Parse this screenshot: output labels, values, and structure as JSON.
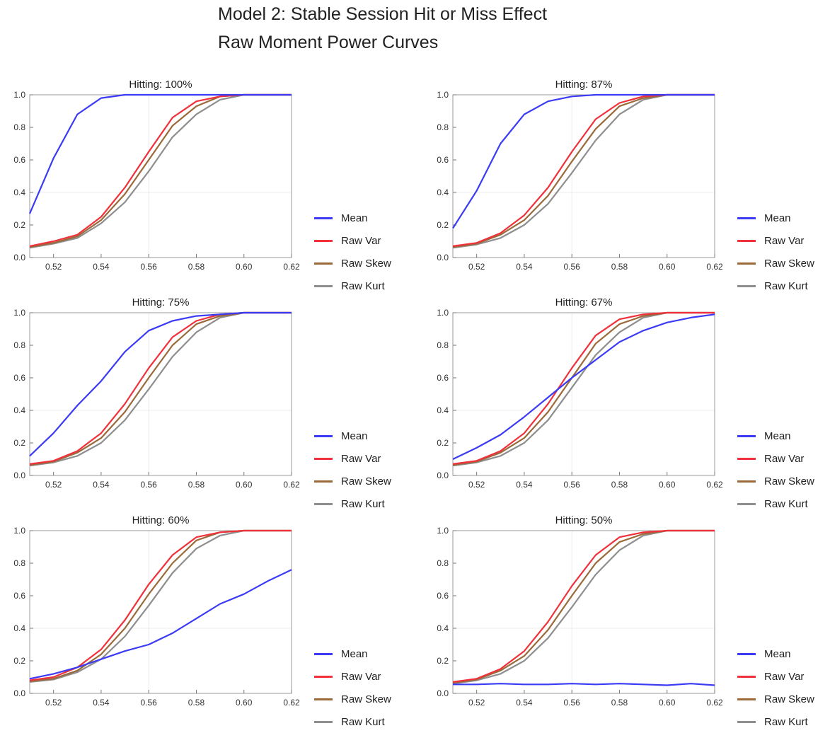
{
  "title_line1": "Model 2: Stable Session Hit or Miss Effect",
  "title_line2": "Raw Moment Power Curves",
  "legend": [
    "Mean",
    "Raw Var",
    "Raw Skew",
    "Raw Kurt"
  ],
  "colors": {
    "Mean": "#3b3bf5",
    "Raw Var": "#f0303a",
    "Raw Skew": "#9a6a3a",
    "Raw Kurt": "#8e8e8e"
  },
  "chart_data": [
    {
      "type": "line",
      "title": "Hitting: 100%",
      "xlim": [
        0.51,
        0.62
      ],
      "ylim": [
        0.0,
        1.0
      ],
      "x_ticks": [
        "0.52",
        "0.54",
        "0.56",
        "0.58",
        "0.60",
        "0.62"
      ],
      "y_ticks": [
        "0.0",
        "0.2",
        "0.4",
        "0.6",
        "0.8",
        "1.0"
      ],
      "x": [
        0.51,
        0.52,
        0.53,
        0.54,
        0.55,
        0.56,
        0.57,
        0.58,
        0.59,
        0.6,
        0.61,
        0.62
      ],
      "series": [
        {
          "name": "Mean",
          "values": [
            0.27,
            0.61,
            0.88,
            0.98,
            1.0,
            1.0,
            1.0,
            1.0,
            1.0,
            1.0,
            1.0,
            1.0
          ]
        },
        {
          "name": "Raw Var",
          "values": [
            0.07,
            0.1,
            0.14,
            0.25,
            0.43,
            0.65,
            0.86,
            0.96,
            0.99,
            1.0,
            1.0,
            1.0
          ]
        },
        {
          "name": "Raw Skew",
          "values": [
            0.065,
            0.09,
            0.13,
            0.23,
            0.39,
            0.6,
            0.81,
            0.93,
            0.99,
            1.0,
            1.0,
            1.0
          ]
        },
        {
          "name": "Raw Kurt",
          "values": [
            0.06,
            0.085,
            0.12,
            0.21,
            0.34,
            0.53,
            0.74,
            0.88,
            0.97,
            1.0,
            1.0,
            1.0
          ]
        }
      ]
    },
    {
      "type": "line",
      "title": "Hitting: 87%",
      "xlim": [
        0.51,
        0.62
      ],
      "ylim": [
        0.0,
        1.0
      ],
      "x_ticks": [
        "0.52",
        "0.54",
        "0.56",
        "0.58",
        "0.60",
        "0.62"
      ],
      "y_ticks": [
        "0.0",
        "0.2",
        "0.4",
        "0.6",
        "0.8",
        "1.0"
      ],
      "x": [
        0.51,
        0.52,
        0.53,
        0.54,
        0.55,
        0.56,
        0.57,
        0.58,
        0.59,
        0.6,
        0.61,
        0.62
      ],
      "series": [
        {
          "name": "Mean",
          "values": [
            0.18,
            0.41,
            0.7,
            0.88,
            0.96,
            0.99,
            1.0,
            1.0,
            1.0,
            1.0,
            1.0,
            1.0
          ]
        },
        {
          "name": "Raw Var",
          "values": [
            0.07,
            0.09,
            0.15,
            0.26,
            0.43,
            0.65,
            0.85,
            0.95,
            0.99,
            1.0,
            1.0,
            1.0
          ]
        },
        {
          "name": "Raw Skew",
          "values": [
            0.065,
            0.085,
            0.14,
            0.23,
            0.38,
            0.59,
            0.79,
            0.93,
            0.98,
            1.0,
            1.0,
            1.0
          ]
        },
        {
          "name": "Raw Kurt",
          "values": [
            0.06,
            0.08,
            0.12,
            0.2,
            0.33,
            0.52,
            0.72,
            0.88,
            0.97,
            1.0,
            1.0,
            1.0
          ]
        }
      ]
    },
    {
      "type": "line",
      "title": "Hitting: 75%",
      "xlim": [
        0.51,
        0.62
      ],
      "ylim": [
        0.0,
        1.0
      ],
      "x_ticks": [
        "0.52",
        "0.54",
        "0.56",
        "0.58",
        "0.60",
        "0.62"
      ],
      "y_ticks": [
        "0.0",
        "0.2",
        "0.4",
        "0.6",
        "0.8",
        "1.0"
      ],
      "x": [
        0.51,
        0.52,
        0.53,
        0.54,
        0.55,
        0.56,
        0.57,
        0.58,
        0.59,
        0.6,
        0.61,
        0.62
      ],
      "series": [
        {
          "name": "Mean",
          "values": [
            0.12,
            0.26,
            0.43,
            0.58,
            0.76,
            0.89,
            0.95,
            0.98,
            0.99,
            1.0,
            1.0,
            1.0
          ]
        },
        {
          "name": "Raw Var",
          "values": [
            0.07,
            0.09,
            0.15,
            0.26,
            0.44,
            0.66,
            0.85,
            0.95,
            0.99,
            1.0,
            1.0,
            1.0
          ]
        },
        {
          "name": "Raw Skew",
          "values": [
            0.065,
            0.085,
            0.14,
            0.23,
            0.39,
            0.6,
            0.8,
            0.93,
            0.98,
            1.0,
            1.0,
            1.0
          ]
        },
        {
          "name": "Raw Kurt",
          "values": [
            0.06,
            0.08,
            0.12,
            0.2,
            0.34,
            0.53,
            0.73,
            0.88,
            0.97,
            1.0,
            1.0,
            1.0
          ]
        }
      ]
    },
    {
      "type": "line",
      "title": "Hitting: 67%",
      "xlim": [
        0.51,
        0.62
      ],
      "ylim": [
        0.0,
        1.0
      ],
      "x_ticks": [
        "0.52",
        "0.54",
        "0.56",
        "0.58",
        "0.60",
        "0.62"
      ],
      "y_ticks": [
        "0.0",
        "0.2",
        "0.4",
        "0.6",
        "0.8",
        "1.0"
      ],
      "x": [
        0.51,
        0.52,
        0.53,
        0.54,
        0.55,
        0.56,
        0.57,
        0.58,
        0.59,
        0.6,
        0.61,
        0.62
      ],
      "series": [
        {
          "name": "Mean",
          "values": [
            0.1,
            0.17,
            0.25,
            0.36,
            0.48,
            0.6,
            0.71,
            0.82,
            0.89,
            0.94,
            0.97,
            0.99
          ]
        },
        {
          "name": "Raw Var",
          "values": [
            0.07,
            0.09,
            0.15,
            0.26,
            0.44,
            0.66,
            0.86,
            0.96,
            0.99,
            1.0,
            1.0,
            1.0
          ]
        },
        {
          "name": "Raw Skew",
          "values": [
            0.065,
            0.085,
            0.14,
            0.23,
            0.39,
            0.6,
            0.81,
            0.93,
            0.98,
            1.0,
            1.0,
            1.0
          ]
        },
        {
          "name": "Raw Kurt",
          "values": [
            0.06,
            0.08,
            0.12,
            0.2,
            0.34,
            0.54,
            0.74,
            0.88,
            0.97,
            1.0,
            1.0,
            1.0
          ]
        }
      ]
    },
    {
      "type": "line",
      "title": "Hitting: 60%",
      "xlim": [
        0.51,
        0.62
      ],
      "ylim": [
        0.0,
        1.0
      ],
      "x_ticks": [
        "0.52",
        "0.54",
        "0.56",
        "0.58",
        "0.60",
        "0.62"
      ],
      "y_ticks": [
        "0.0",
        "0.2",
        "0.4",
        "0.6",
        "0.8",
        "1.0"
      ],
      "x": [
        0.51,
        0.52,
        0.53,
        0.54,
        0.55,
        0.56,
        0.57,
        0.58,
        0.59,
        0.6,
        0.61,
        0.62
      ],
      "series": [
        {
          "name": "Mean",
          "values": [
            0.09,
            0.12,
            0.16,
            0.21,
            0.26,
            0.3,
            0.37,
            0.46,
            0.55,
            0.61,
            0.69,
            0.76
          ]
        },
        {
          "name": "Raw Var",
          "values": [
            0.08,
            0.1,
            0.16,
            0.27,
            0.45,
            0.67,
            0.85,
            0.96,
            0.99,
            1.0,
            1.0,
            1.0
          ]
        },
        {
          "name": "Raw Skew",
          "values": [
            0.075,
            0.09,
            0.14,
            0.24,
            0.4,
            0.61,
            0.8,
            0.94,
            0.99,
            1.0,
            1.0,
            1.0
          ]
        },
        {
          "name": "Raw Kurt",
          "values": [
            0.07,
            0.085,
            0.13,
            0.21,
            0.35,
            0.54,
            0.74,
            0.89,
            0.97,
            1.0,
            1.0,
            1.0
          ]
        }
      ]
    },
    {
      "type": "line",
      "title": "Hitting: 50%",
      "xlim": [
        0.51,
        0.62
      ],
      "ylim": [
        0.0,
        1.0
      ],
      "x_ticks": [
        "0.52",
        "0.54",
        "0.56",
        "0.58",
        "0.60",
        "0.62"
      ],
      "y_ticks": [
        "0.0",
        "0.2",
        "0.4",
        "0.6",
        "0.8",
        "1.0"
      ],
      "x": [
        0.51,
        0.52,
        0.53,
        0.54,
        0.55,
        0.56,
        0.57,
        0.58,
        0.59,
        0.6,
        0.61,
        0.62
      ],
      "series": [
        {
          "name": "Mean",
          "values": [
            0.055,
            0.055,
            0.06,
            0.055,
            0.055,
            0.06,
            0.055,
            0.06,
            0.055,
            0.05,
            0.06,
            0.05
          ]
        },
        {
          "name": "Raw Var",
          "values": [
            0.07,
            0.09,
            0.15,
            0.26,
            0.44,
            0.66,
            0.85,
            0.96,
            0.99,
            1.0,
            1.0,
            1.0
          ]
        },
        {
          "name": "Raw Skew",
          "values": [
            0.065,
            0.085,
            0.14,
            0.23,
            0.39,
            0.6,
            0.8,
            0.93,
            0.98,
            1.0,
            1.0,
            1.0
          ]
        },
        {
          "name": "Raw Kurt",
          "values": [
            0.06,
            0.08,
            0.12,
            0.2,
            0.34,
            0.53,
            0.73,
            0.88,
            0.97,
            1.0,
            1.0,
            1.0
          ]
        }
      ]
    }
  ]
}
